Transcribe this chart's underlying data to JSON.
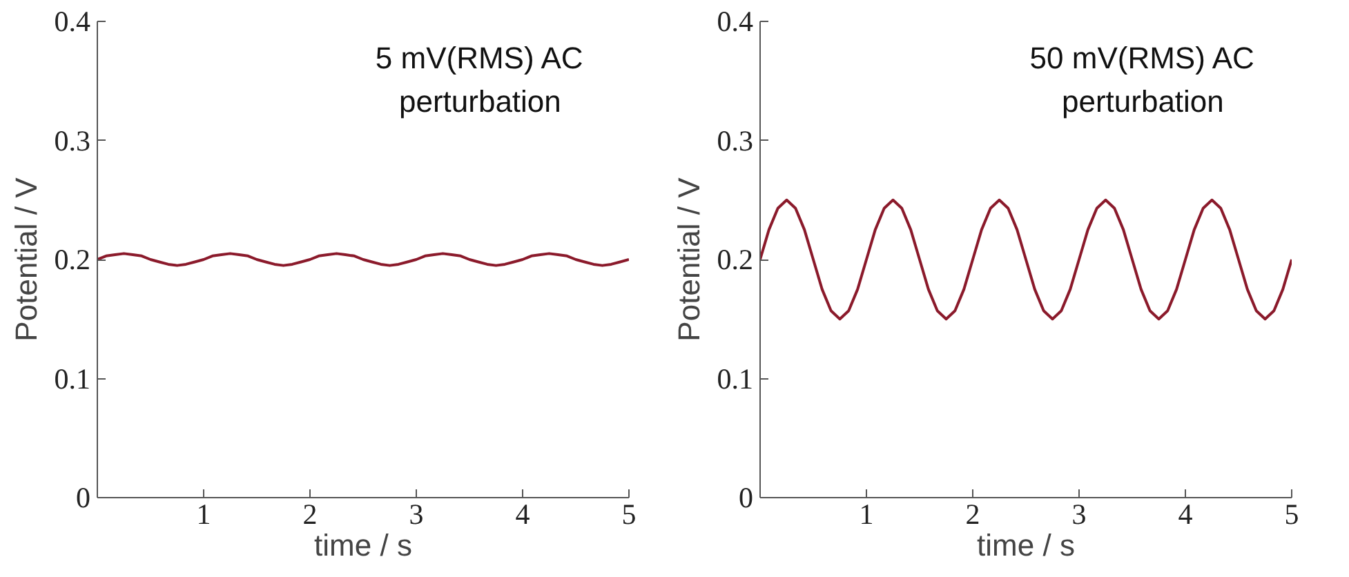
{
  "chart_data": [
    {
      "type": "line",
      "xlabel": "time / s",
      "ylabel": "Potential / V",
      "annotations": [
        "5 mV(RMS) AC\nperturbation"
      ],
      "xlim": [
        0,
        5
      ],
      "xticks": [
        1,
        2,
        3,
        4,
        5
      ],
      "ylim": [
        0,
        0.4
      ],
      "yticks": [
        0,
        0.1,
        0.2,
        0.3,
        0.4
      ],
      "grid": false,
      "marker": "none",
      "line_style": "solid",
      "x": [
        0,
        0.083,
        0.167,
        0.25,
        0.333,
        0.417,
        0.5,
        0.583,
        0.667,
        0.75,
        0.833,
        0.917,
        1,
        1.083,
        1.167,
        1.25,
        1.333,
        1.417,
        1.5,
        1.583,
        1.667,
        1.75,
        1.833,
        1.917,
        2,
        2.083,
        2.167,
        2.25,
        2.333,
        2.417,
        2.5,
        2.583,
        2.667,
        2.75,
        2.833,
        2.917,
        3,
        3.083,
        3.167,
        3.25,
        3.333,
        3.417,
        3.5,
        3.583,
        3.667,
        3.75,
        3.833,
        3.917,
        4,
        4.083,
        4.167,
        4.25,
        4.333,
        4.417,
        4.5,
        4.583,
        4.667,
        4.75,
        4.833,
        4.917,
        5
      ],
      "series": [
        {
          "color": "#8b1a2b",
          "values": [
            0.2,
            0.203,
            0.204,
            0.205,
            0.204,
            0.203,
            0.2,
            0.198,
            0.196,
            0.195,
            0.196,
            0.198,
            0.2,
            0.203,
            0.204,
            0.205,
            0.204,
            0.203,
            0.2,
            0.198,
            0.196,
            0.195,
            0.196,
            0.198,
            0.2,
            0.203,
            0.204,
            0.205,
            0.204,
            0.203,
            0.2,
            0.198,
            0.196,
            0.195,
            0.196,
            0.198,
            0.2,
            0.203,
            0.204,
            0.205,
            0.204,
            0.203,
            0.2,
            0.198,
            0.196,
            0.195,
            0.196,
            0.198,
            0.2,
            0.203,
            0.204,
            0.205,
            0.204,
            0.203,
            0.2,
            0.198,
            0.196,
            0.195,
            0.196,
            0.198,
            0.2
          ]
        }
      ]
    },
    {
      "type": "line",
      "xlabel": "time / s",
      "ylabel": "Potential / V",
      "annotations": [
        "50 mV(RMS) AC\nperturbation"
      ],
      "xlim": [
        0,
        5
      ],
      "xticks": [
        1,
        2,
        3,
        4,
        5
      ],
      "ylim": [
        0,
        0.4
      ],
      "yticks": [
        0,
        0.1,
        0.2,
        0.3,
        0.4
      ],
      "grid": false,
      "marker": "none",
      "line_style": "solid",
      "x": [
        0,
        0.083,
        0.167,
        0.25,
        0.333,
        0.417,
        0.5,
        0.583,
        0.667,
        0.75,
        0.833,
        0.917,
        1,
        1.083,
        1.167,
        1.25,
        1.333,
        1.417,
        1.5,
        1.583,
        1.667,
        1.75,
        1.833,
        1.917,
        2,
        2.083,
        2.167,
        2.25,
        2.333,
        2.417,
        2.5,
        2.583,
        2.667,
        2.75,
        2.833,
        2.917,
        3,
        3.083,
        3.167,
        3.25,
        3.333,
        3.417,
        3.5,
        3.583,
        3.667,
        3.75,
        3.833,
        3.917,
        4,
        4.083,
        4.167,
        4.25,
        4.333,
        4.417,
        4.5,
        4.583,
        4.667,
        4.75,
        4.833,
        4.917,
        5
      ],
      "series": [
        {
          "color": "#8b1a2b",
          "values": [
            0.2,
            0.225,
            0.243,
            0.25,
            0.243,
            0.225,
            0.2,
            0.175,
            0.157,
            0.15,
            0.157,
            0.175,
            0.2,
            0.225,
            0.243,
            0.25,
            0.243,
            0.225,
            0.2,
            0.175,
            0.157,
            0.15,
            0.157,
            0.175,
            0.2,
            0.225,
            0.243,
            0.25,
            0.243,
            0.225,
            0.2,
            0.175,
            0.157,
            0.15,
            0.157,
            0.175,
            0.2,
            0.225,
            0.243,
            0.25,
            0.243,
            0.225,
            0.2,
            0.175,
            0.157,
            0.15,
            0.157,
            0.175,
            0.2,
            0.225,
            0.243,
            0.25,
            0.243,
            0.225,
            0.2,
            0.175,
            0.157,
            0.15,
            0.157,
            0.175,
            0.2
          ]
        }
      ]
    }
  ]
}
